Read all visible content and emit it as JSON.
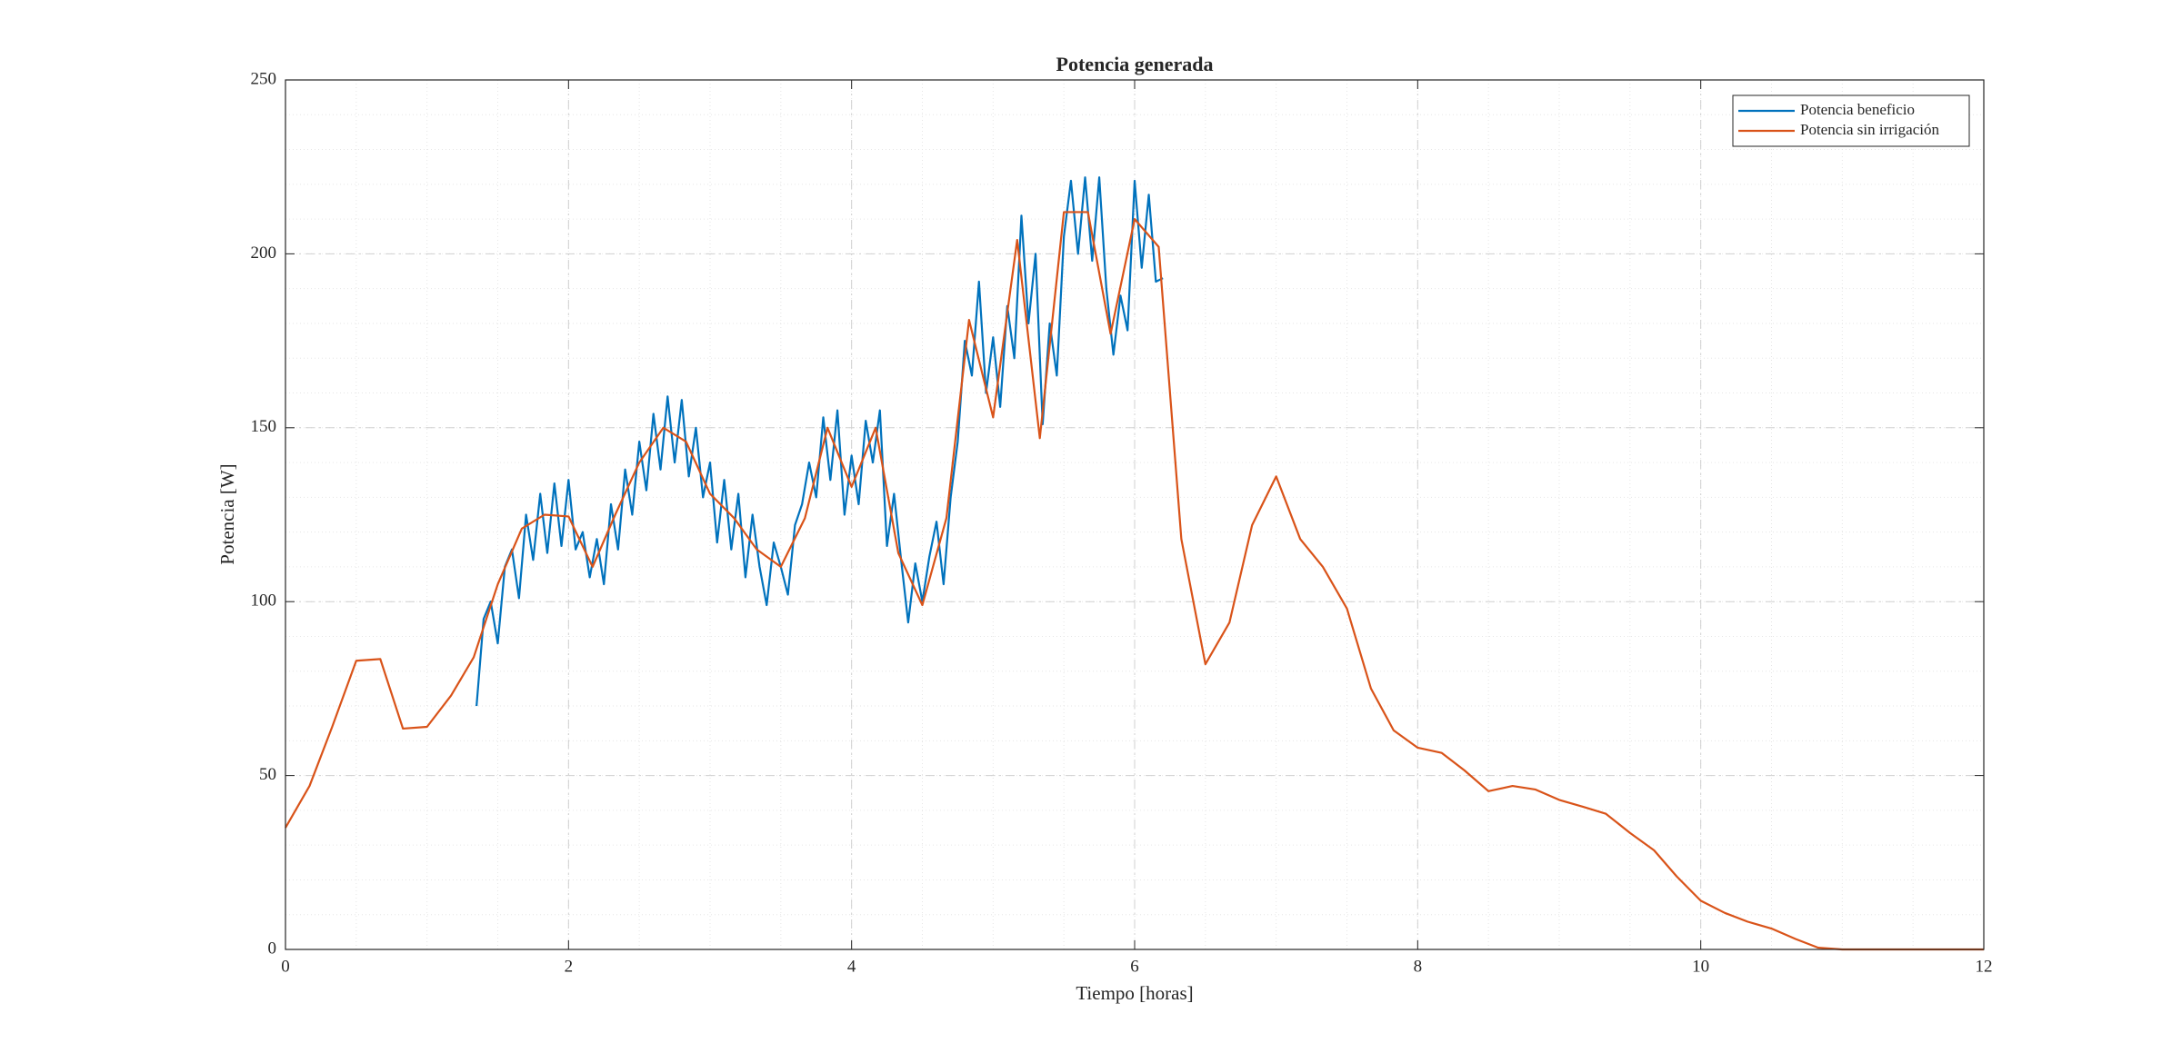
{
  "chart_data": {
    "type": "line",
    "title": "Potencia generada",
    "xlabel": "Tiempo [horas]",
    "ylabel": "Potencia [W]",
    "xlim": [
      0,
      12
    ],
    "xticks": [
      0,
      2,
      4,
      6,
      8,
      10,
      12
    ],
    "ylim": [
      0,
      250
    ],
    "yticks": [
      0,
      50,
      100,
      150,
      200,
      250
    ],
    "grid": true,
    "minor_grid": true,
    "legend": "northeast",
    "series": [
      {
        "name": "Potencia beneficio",
        "color": "#0072BD",
        "x": [
          1.35,
          1.4,
          1.45,
          1.5,
          1.55,
          1.6,
          1.65,
          1.7,
          1.75,
          1.8,
          1.85,
          1.9,
          1.95,
          2.0,
          2.05,
          2.1,
          2.15,
          2.2,
          2.25,
          2.3,
          2.35,
          2.4,
          2.45,
          2.5,
          2.55,
          2.6,
          2.65,
          2.7,
          2.75,
          2.8,
          2.85,
          2.9,
          2.95,
          3.0,
          3.05,
          3.1,
          3.15,
          3.2,
          3.25,
          3.3,
          3.35,
          3.4,
          3.45,
          3.5,
          3.55,
          3.6,
          3.65,
          3.7,
          3.75,
          3.8,
          3.85,
          3.9,
          3.95,
          4.0,
          4.05,
          4.1,
          4.15,
          4.2,
          4.25,
          4.3,
          4.35,
          4.4,
          4.45,
          4.5,
          4.55,
          4.6,
          4.65,
          4.7,
          4.75,
          4.8,
          4.85,
          4.9,
          4.95,
          5.0,
          5.05,
          5.1,
          5.15,
          5.2,
          5.25,
          5.3,
          5.35,
          5.4,
          5.45,
          5.5,
          5.55,
          5.6,
          5.65,
          5.7,
          5.75,
          5.8,
          5.85,
          5.9,
          5.95,
          6.0,
          6.05,
          6.1,
          6.15,
          6.2
        ],
        "values": [
          70,
          95,
          100,
          88,
          110,
          115,
          101,
          125,
          112,
          131,
          114,
          134,
          116,
          135,
          115,
          120,
          107,
          118,
          105,
          128,
          115,
          138,
          125,
          146,
          132,
          154,
          138,
          159,
          140,
          158,
          136,
          150,
          130,
          140,
          117,
          135,
          115,
          131,
          107,
          125,
          110,
          99,
          117,
          110,
          102,
          122,
          128,
          140,
          130,
          153,
          135,
          155,
          125,
          142,
          128,
          152,
          140,
          155,
          116,
          131,
          112,
          94,
          111,
          100,
          113,
          123,
          105,
          130,
          146,
          175,
          165,
          192,
          160,
          176,
          156,
          185,
          170,
          211,
          180,
          200,
          151,
          180,
          165,
          205,
          221,
          200,
          222,
          198,
          222,
          190,
          171,
          188,
          178,
          221,
          196,
          217,
          192,
          193
        ]
      },
      {
        "name": "Potencia sin irrigación",
        "color": "#D95319",
        "x": [
          0,
          0.17,
          0.33,
          0.5,
          0.67,
          0.83,
          1,
          1.17,
          1.33,
          1.5,
          1.67,
          1.83,
          2,
          2.17,
          2.33,
          2.5,
          2.67,
          2.83,
          3,
          3.17,
          3.33,
          3.5,
          3.67,
          3.83,
          4,
          4.17,
          4.33,
          4.5,
          4.67,
          4.83,
          5,
          5.17,
          5.33,
          5.5,
          5.67,
          5.83,
          6,
          6.17,
          6.33,
          6.5,
          6.67,
          6.83,
          7,
          7.17,
          7.33,
          7.5,
          7.67,
          7.83,
          8,
          8.17,
          8.33,
          8.5,
          8.67,
          8.83,
          9,
          9.17,
          9.33,
          9.5,
          9.67,
          9.83,
          10,
          10.17,
          10.33,
          10.5,
          10.67,
          10.83,
          11,
          11.17,
          11.33,
          11.5,
          11.67,
          11.83,
          12
        ],
        "values": [
          35,
          47,
          64,
          83,
          83.5,
          63.5,
          64,
          73,
          84,
          105,
          121,
          125,
          124.5,
          110,
          125,
          140,
          150,
          146,
          131,
          124,
          115,
          110,
          124,
          150,
          133,
          150,
          114,
          99,
          124,
          181,
          153,
          204,
          147,
          212,
          212,
          177,
          210,
          202,
          118,
          82,
          94,
          122,
          136,
          118,
          110,
          98,
          75,
          63,
          58,
          56.5,
          51.5,
          45.5,
          47,
          46,
          43,
          41,
          39,
          33.5,
          28.5,
          21,
          14,
          10.5,
          8,
          6,
          3,
          0.5,
          0,
          0,
          0,
          0,
          0,
          0,
          0
        ]
      }
    ]
  }
}
